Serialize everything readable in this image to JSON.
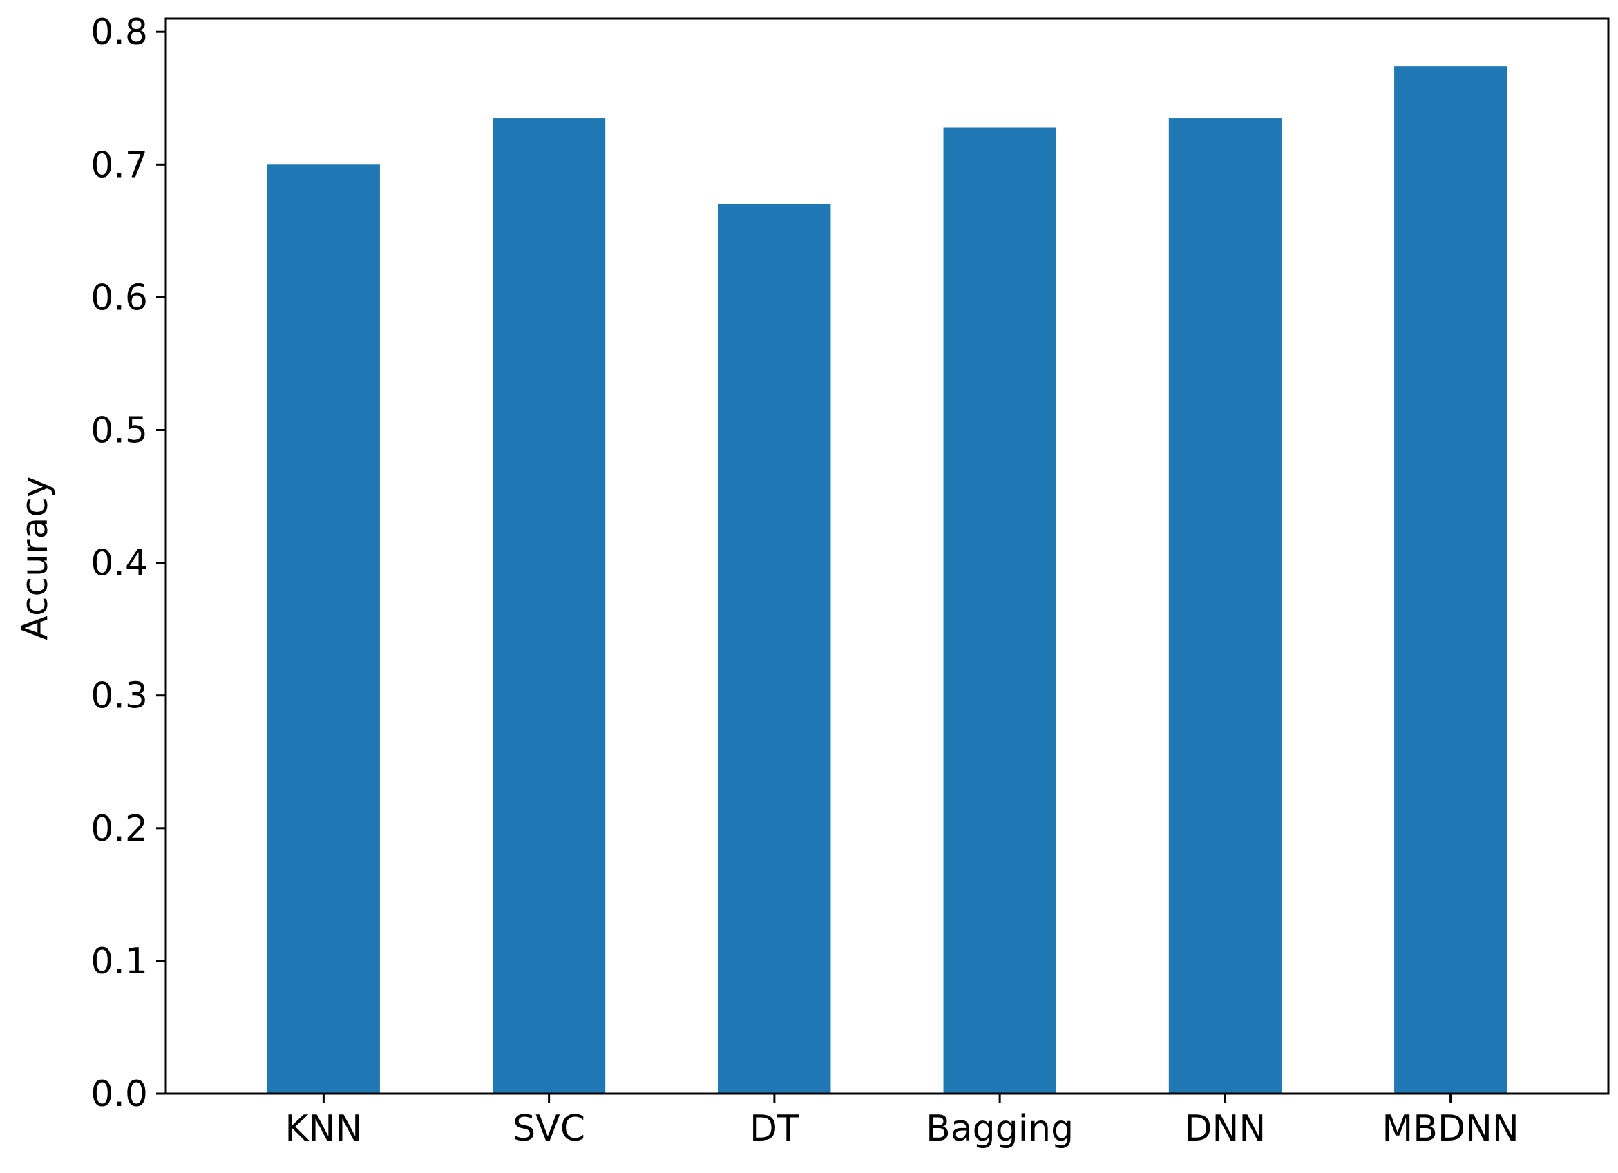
{
  "chart_data": {
    "type": "bar",
    "categories": [
      "KNN",
      "SVC",
      "DT",
      "Bagging",
      "DNN",
      "MBDNN"
    ],
    "values": [
      0.7,
      0.735,
      0.67,
      0.728,
      0.735,
      0.774
    ],
    "title": "",
    "xlabel": "",
    "ylabel": "Accuracy",
    "ylim": [
      0.0,
      0.81
    ],
    "yticks": [
      0.0,
      0.1,
      0.2,
      0.3,
      0.4,
      0.5,
      0.6,
      0.7,
      0.8
    ],
    "ytick_labels": [
      "0.0",
      "0.1",
      "0.2",
      "0.3",
      "0.4",
      "0.5",
      "0.6",
      "0.7",
      "0.8"
    ],
    "grid": false,
    "legend": "none",
    "bar_color": "#1f77b4",
    "axis_color": "#000000"
  }
}
